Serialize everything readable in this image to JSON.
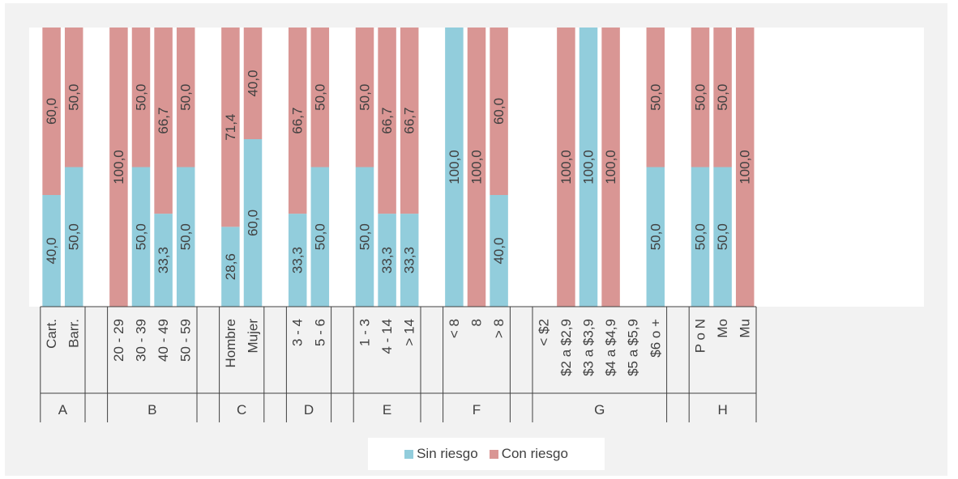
{
  "chart_data": {
    "type": "bar",
    "stacked": true,
    "percent_stacked": true,
    "ylim": [
      0,
      100
    ],
    "colors": {
      "sin": "#92cddc",
      "con": "#d99694"
    },
    "legend": {
      "position": "bottom",
      "items": [
        "Sin riesgo",
        "Con riesgo"
      ]
    },
    "groups": [
      {
        "name": "A",
        "categories": [
          "Cart.",
          "Barr."
        ],
        "sin": [
          40.0,
          50.0
        ],
        "con": [
          60.0,
          50.0
        ],
        "sin_labels": [
          "40,0",
          "50,0"
        ],
        "con_labels": [
          "60,0",
          "50,0"
        ]
      },
      {
        "name": "B",
        "categories": [
          "20 - 29",
          "30 - 39",
          "40 - 49",
          "50 - 59"
        ],
        "sin": [
          0,
          50.0,
          33.3,
          50.0
        ],
        "con": [
          100.0,
          50.0,
          66.7,
          50.0
        ],
        "sin_labels": [
          "",
          "50,0",
          "33,3",
          "50,0"
        ],
        "con_labels": [
          "100,0",
          "50,0",
          "66,7",
          "50,0"
        ]
      },
      {
        "name": "C",
        "categories": [
          "Hombre",
          "Mujer"
        ],
        "sin": [
          28.6,
          60.0
        ],
        "con": [
          71.4,
          40.0
        ],
        "sin_labels": [
          "28,6",
          "60,0"
        ],
        "con_labels": [
          "71,4",
          "40,0"
        ]
      },
      {
        "name": "D",
        "categories": [
          "3 - 4",
          "5 - 6"
        ],
        "sin": [
          33.3,
          50.0
        ],
        "con": [
          66.7,
          50.0
        ],
        "sin_labels": [
          "33,3",
          "50,0"
        ],
        "con_labels": [
          "66,7",
          "50,0"
        ]
      },
      {
        "name": "E",
        "categories": [
          "1 - 3",
          "4 - 14",
          "> 14"
        ],
        "sin": [
          50.0,
          33.3,
          33.3
        ],
        "con": [
          50.0,
          66.7,
          66.7
        ],
        "sin_labels": [
          "50,0",
          "33,3",
          "33,3"
        ],
        "con_labels": [
          "50,0",
          "66,7",
          "66,7"
        ]
      },
      {
        "name": "F",
        "categories": [
          "< 8",
          "8",
          "> 8"
        ],
        "sin": [
          100.0,
          0,
          40.0
        ],
        "con": [
          0,
          100.0,
          60.0
        ],
        "sin_labels": [
          "100,0",
          "",
          "40,0"
        ],
        "con_labels": [
          "",
          "100,0",
          "60,0"
        ]
      },
      {
        "name": "G",
        "categories": [
          "< $2",
          "$2 a $2,9",
          "$3 a $3,9",
          "$4 a $4,9",
          "$5 a $5,9",
          "$6 o +"
        ],
        "sin": [
          0,
          0,
          100.0,
          0,
          0,
          50.0
        ],
        "con": [
          0,
          100.0,
          0,
          100.0,
          0,
          50.0
        ],
        "sin_labels": [
          "",
          "",
          "100,0",
          "",
          "",
          "50,0"
        ],
        "con_labels": [
          "",
          "100,0",
          "",
          "100,0",
          "",
          "50,0"
        ]
      },
      {
        "name": "H",
        "categories": [
          "P o N",
          "Mo",
          "Mu"
        ],
        "sin": [
          50.0,
          50.0,
          0
        ],
        "con": [
          50.0,
          50.0,
          100.0
        ],
        "sin_labels": [
          "50,0",
          "50,0",
          ""
        ],
        "con_labels": [
          "50,0",
          "50,0",
          "100,0"
        ]
      }
    ]
  }
}
